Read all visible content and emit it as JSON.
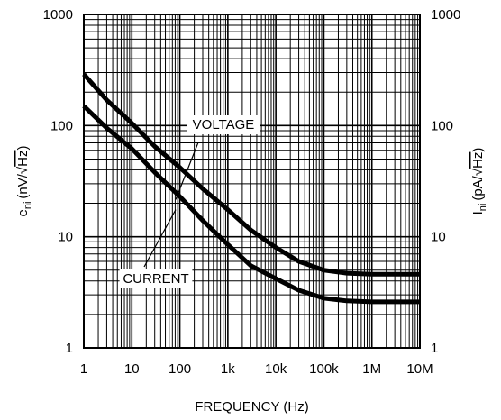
{
  "chart_data": {
    "type": "line",
    "title": "",
    "xlabel": "FREQUENCY (Hz)",
    "ylabel_left": {
      "main": "e",
      "sub": "ni",
      "unit_prefix": "(nV/",
      "unit_radicand": "Hz",
      "unit_suffix": ")"
    },
    "ylabel_right": {
      "main": "I",
      "sub": "ni",
      "unit_prefix": "(pA/",
      "unit_radicand": "Hz",
      "unit_suffix": ")"
    },
    "x_scale": "log",
    "y_scale": "log",
    "xlim": [
      1,
      10000000
    ],
    "ylim": [
      1,
      1000
    ],
    "grid": true,
    "x_ticks": [
      {
        "value": 1,
        "label": "1"
      },
      {
        "value": 10,
        "label": "10"
      },
      {
        "value": 100,
        "label": "100"
      },
      {
        "value": 1000,
        "label": "1k"
      },
      {
        "value": 10000,
        "label": "10k"
      },
      {
        "value": 100000,
        "label": "100k"
      },
      {
        "value": 1000000,
        "label": "1M"
      },
      {
        "value": 10000000,
        "label": "10M"
      }
    ],
    "y_ticks_left": [
      {
        "value": 1,
        "label": "1"
      },
      {
        "value": 10,
        "label": "10"
      },
      {
        "value": 100,
        "label": "100"
      },
      {
        "value": 1000,
        "label": "1000"
      }
    ],
    "y_ticks_right": [
      {
        "value": 1,
        "label": "1"
      },
      {
        "value": 10,
        "label": "10"
      },
      {
        "value": 100,
        "label": "100"
      },
      {
        "value": 1000,
        "label": "1000"
      }
    ],
    "series": [
      {
        "name": "VOLTAGE",
        "points": [
          [
            1,
            290
          ],
          [
            3,
            170
          ],
          [
            10,
            105
          ],
          [
            30,
            65
          ],
          [
            100,
            42
          ],
          [
            300,
            27
          ],
          [
            1000,
            17.5
          ],
          [
            3000,
            11.5
          ],
          [
            10000,
            8
          ],
          [
            30000,
            6
          ],
          [
            100000,
            5
          ],
          [
            300000,
            4.7
          ],
          [
            1000000,
            4.6
          ],
          [
            10000000,
            4.6
          ]
        ]
      },
      {
        "name": "CURRENT",
        "points": [
          [
            1,
            150
          ],
          [
            3,
            95
          ],
          [
            10,
            62
          ],
          [
            30,
            38
          ],
          [
            100,
            23
          ],
          [
            300,
            14
          ],
          [
            1000,
            8.5
          ],
          [
            3000,
            5.5
          ],
          [
            10000,
            4.2
          ],
          [
            30000,
            3.3
          ],
          [
            100000,
            2.8
          ],
          [
            300000,
            2.65
          ],
          [
            1000000,
            2.6
          ],
          [
            10000000,
            2.6
          ]
        ]
      }
    ],
    "annotations": [
      {
        "text": "VOLTAGE",
        "series": "VOLTAGE",
        "at_x": 300
      },
      {
        "text": "CURRENT",
        "series": "CURRENT",
        "at_x": 300
      }
    ]
  }
}
